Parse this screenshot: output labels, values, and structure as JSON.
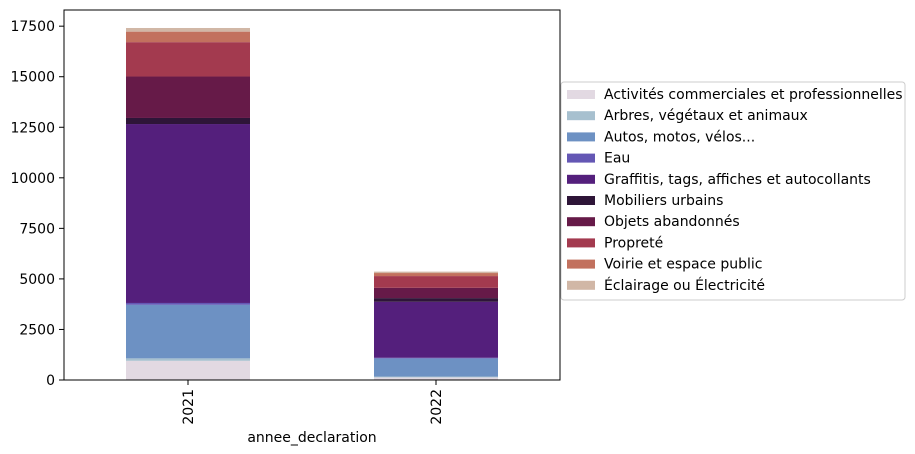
{
  "chart_data": {
    "type": "bar",
    "stacked": true,
    "title": "",
    "xlabel": "annee_declaration",
    "ylabel": "",
    "categories": [
      "2021",
      "2022"
    ],
    "ylim": [
      0,
      18300
    ],
    "yticks": [
      0,
      2500,
      5000,
      7500,
      10000,
      12500,
      15000,
      17500
    ],
    "ytick_labels": [
      "0",
      "2500",
      "5000",
      "7500",
      "10000",
      "12500",
      "15000",
      "17500"
    ],
    "grid": false,
    "legend_position": "right",
    "series": [
      {
        "name": "Activités commerciales et professionnelles",
        "color": "#e2d9e2",
        "values": [
          950,
          130
        ]
      },
      {
        "name": "Arbres, végétaux et animaux",
        "color": "#a7c0cf",
        "values": [
          120,
          40
        ]
      },
      {
        "name": "Autos, motos, vélos...",
        "color": "#6d91c3",
        "values": [
          2650,
          900
        ]
      },
      {
        "name": "Eau",
        "color": "#6457b4",
        "values": [
          90,
          30
        ]
      },
      {
        "name": "Graffitis, tags, affiches et autocollants",
        "color": "#541f7c",
        "values": [
          8850,
          2770
        ]
      },
      {
        "name": "Mobiliers urbains",
        "color": "#2e1538",
        "values": [
          300,
          180
        ]
      },
      {
        "name": "Objets abandonnés",
        "color": "#661a48",
        "values": [
          2050,
          510
        ]
      },
      {
        "name": "Propreté",
        "color": "#a33a4f",
        "values": [
          1700,
          580
        ]
      },
      {
        "name": "Voirie et espace public",
        "color": "#c2715e",
        "values": [
          520,
          150
        ]
      },
      {
        "name": "Éclairage ou Électricité",
        "color": "#d1b7a6",
        "values": [
          180,
          70
        ]
      }
    ]
  }
}
